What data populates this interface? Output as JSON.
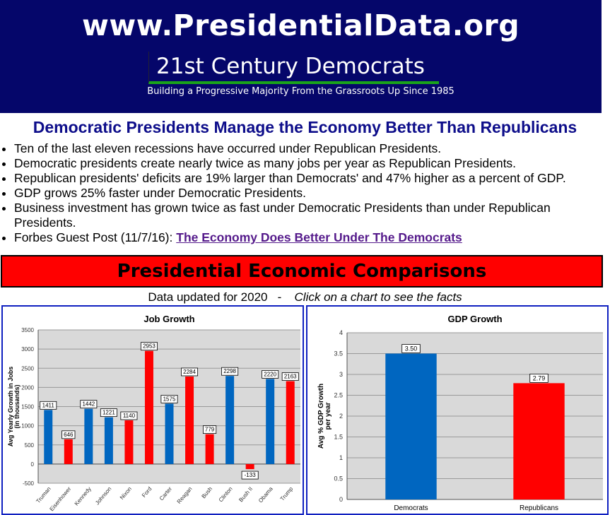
{
  "header": {
    "site": "www.PresidentialData.org",
    "org": "21st Century Democrats",
    "tagline": "Building a Progressive Majority From the Grassroots Up Since 1985"
  },
  "headline": "Democratic Presidents Manage the Economy Better Than Republicans",
  "bullets": [
    "Ten of the last eleven recessions have occurred under Republican Presidents.",
    "Democratic presidents create nearly twice as many jobs per year as Republican Presidents.",
    "Republican presidents' deficits are 19% larger than Democrats' and 47% higher as a percent of GDP.",
    "GDP grows 25% faster under Democratic Presidents.",
    "Business investment has grown twice as fast under Democratic Presidents than under Republican Presidents."
  ],
  "forbes": {
    "prefix": "Forbes Guest Post (11/7/16):",
    "link": "The Economy Does Better Under The Democrats"
  },
  "banner": "Presidential Economic Comparisons",
  "subtitle": {
    "updated": "Data updated for 2020",
    "sep": "-",
    "cta": "Click on a chart to see the facts"
  },
  "colors": {
    "dem": "#0066c0",
    "rep": "#ff0000",
    "header": "#05066a"
  },
  "chart_data": [
    {
      "type": "bar",
      "title": "Job Growth",
      "ylabel": "Avg Yearly Growth in Jobs",
      "ylabel2": "(in thousands)",
      "ylim": [
        -500,
        3500
      ],
      "yticks": [
        -500,
        0,
        500,
        1000,
        1500,
        2000,
        2500,
        3000,
        3500
      ],
      "categories": [
        "Truman",
        "Eisenhower",
        "Kennedy",
        "Johnson",
        "Nixon",
        "Ford",
        "Carter",
        "Reagan",
        "Bush",
        "Clinton",
        "Bush II",
        "Obama",
        "Trump"
      ],
      "values": [
        1411,
        646,
        1442,
        1221,
        1140,
        2953,
        1575,
        2284,
        779,
        2298,
        -133,
        2220,
        2163
      ],
      "party": [
        "D",
        "R",
        "D",
        "D",
        "R",
        "R",
        "D",
        "R",
        "R",
        "D",
        "R",
        "D",
        "R"
      ]
    },
    {
      "type": "bar",
      "title": "GDP Growth",
      "ylabel": "Avg % GDP Growth",
      "ylabel2": "per year",
      "ylim": [
        0,
        4
      ],
      "yticks": [
        0,
        0.5,
        1,
        1.5,
        2,
        2.5,
        3,
        3.5,
        4
      ],
      "categories": [
        "Democrats",
        "Republicans"
      ],
      "values": [
        3.5,
        2.79
      ],
      "labels": [
        "3.50",
        "2.79"
      ],
      "party": [
        "D",
        "R"
      ]
    }
  ]
}
